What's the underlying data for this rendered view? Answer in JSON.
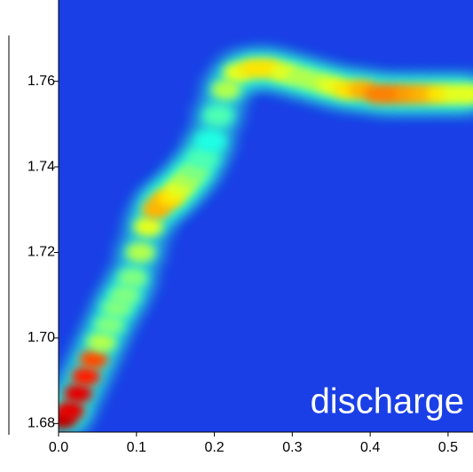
{
  "chart_data": {
    "type": "heatmap",
    "annotation": "discharge",
    "xlim": [
      0,
      0.532
    ],
    "ylim": [
      1.678,
      1.779
    ],
    "xticks": [
      {
        "value": 0,
        "label": "0.0"
      },
      0.1,
      0.2,
      0.3,
      0.4,
      0.5
    ],
    "yticks": [
      1.68,
      {
        "value": 1.7,
        "label": "1.70"
      },
      1.72,
      1.74,
      1.76
    ],
    "background": "#1a3fe6",
    "colormap": "jet",
    "x": [
      0.005,
      0.015,
      0.025,
      0.035,
      0.045,
      0.055,
      0.065,
      0.075,
      0.085,
      0.095,
      0.105,
      0.115,
      0.125,
      0.135,
      0.145,
      0.155,
      0.165,
      0.175,
      0.185,
      0.195,
      0.205,
      0.215,
      0.23,
      0.25,
      0.27,
      0.29,
      0.31,
      0.33,
      0.35,
      0.37,
      0.39,
      0.41,
      0.43,
      0.45,
      0.47,
      0.49,
      0.51,
      0.53
    ],
    "y": [
      1.681,
      1.683,
      1.687,
      1.691,
      1.695,
      1.699,
      1.703,
      1.707,
      1.71,
      1.714,
      1.72,
      1.726,
      1.73,
      1.732,
      1.733,
      1.735,
      1.737,
      1.739,
      1.742,
      1.746,
      1.752,
      1.758,
      1.762,
      1.763,
      1.763,
      1.762,
      1.761,
      1.76,
      1.759,
      1.758,
      1.758,
      1.757,
      1.757,
      1.757,
      1.757,
      1.757,
      1.757,
      1.757
    ],
    "values": [
      0.95,
      0.9,
      0.9,
      0.85,
      0.8,
      0.55,
      0.5,
      0.5,
      0.5,
      0.5,
      0.55,
      0.6,
      0.7,
      0.7,
      0.65,
      0.6,
      0.55,
      0.5,
      0.45,
      0.4,
      0.45,
      0.55,
      0.6,
      0.65,
      0.65,
      0.6,
      0.55,
      0.55,
      0.6,
      0.65,
      0.7,
      0.75,
      0.75,
      0.72,
      0.7,
      0.65,
      0.6,
      0.6
    ]
  }
}
